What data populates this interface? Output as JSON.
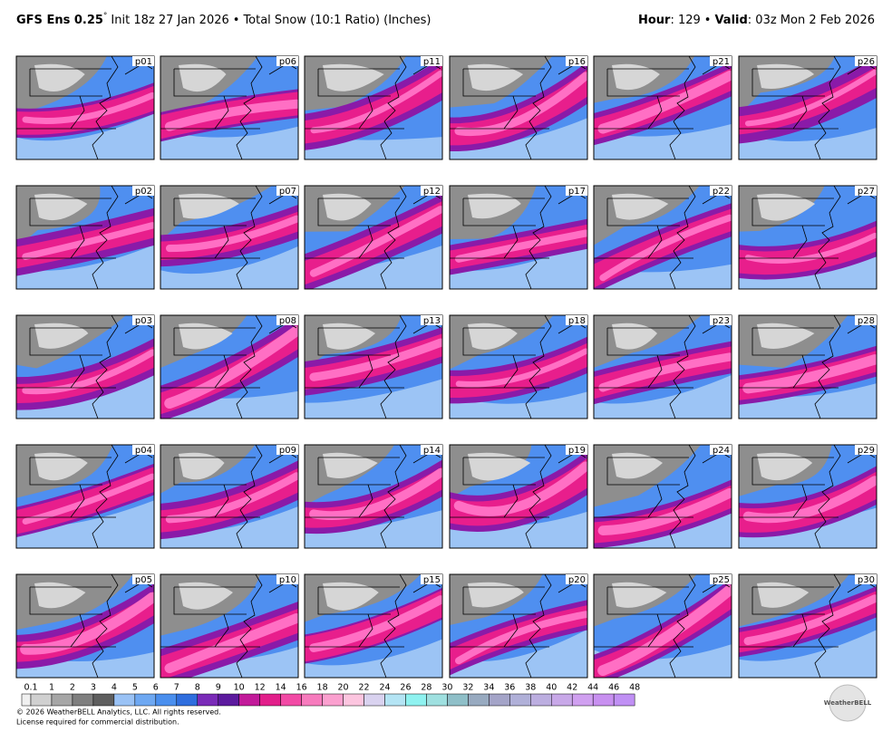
{
  "header": {
    "model": "GFS Ens 0.25",
    "degree": "°",
    "init": "Init 18z 27 Jan 2026",
    "separator": "•",
    "product": "Total Snow (10:1 Ratio) (Inches)",
    "hour_label": "Hour",
    "hour": ": 129",
    "valid_label": "Valid",
    "valid": ": 03z Mon 2 Feb 2026"
  },
  "members": [
    "p01",
    "p02",
    "p03",
    "p04",
    "p05",
    "p06",
    "p07",
    "p08",
    "p09",
    "p10",
    "p11",
    "p12",
    "p13",
    "p14",
    "p15",
    "p16",
    "p17",
    "p18",
    "p19",
    "p20",
    "p21",
    "p22",
    "p23",
    "p24",
    "p25",
    "p26",
    "p27",
    "p28",
    "p29",
    "p30"
  ],
  "colorbar": {
    "labels": [
      "0.1",
      "1",
      "2",
      "3",
      "4",
      "5",
      "6",
      "7",
      "8",
      "9",
      "10",
      "12",
      "14",
      "16",
      "18",
      "20",
      "22",
      "24",
      "26",
      "28",
      "30",
      "32",
      "34",
      "36",
      "38",
      "40",
      "42",
      "44",
      "46",
      "48"
    ]
  },
  "footer": {
    "copyright": "© 2026 WeatherBELL Analytics, LLC. All rights reserved.",
    "license": "License required for commercial distribution.",
    "logo": "WeatherBELL"
  }
}
